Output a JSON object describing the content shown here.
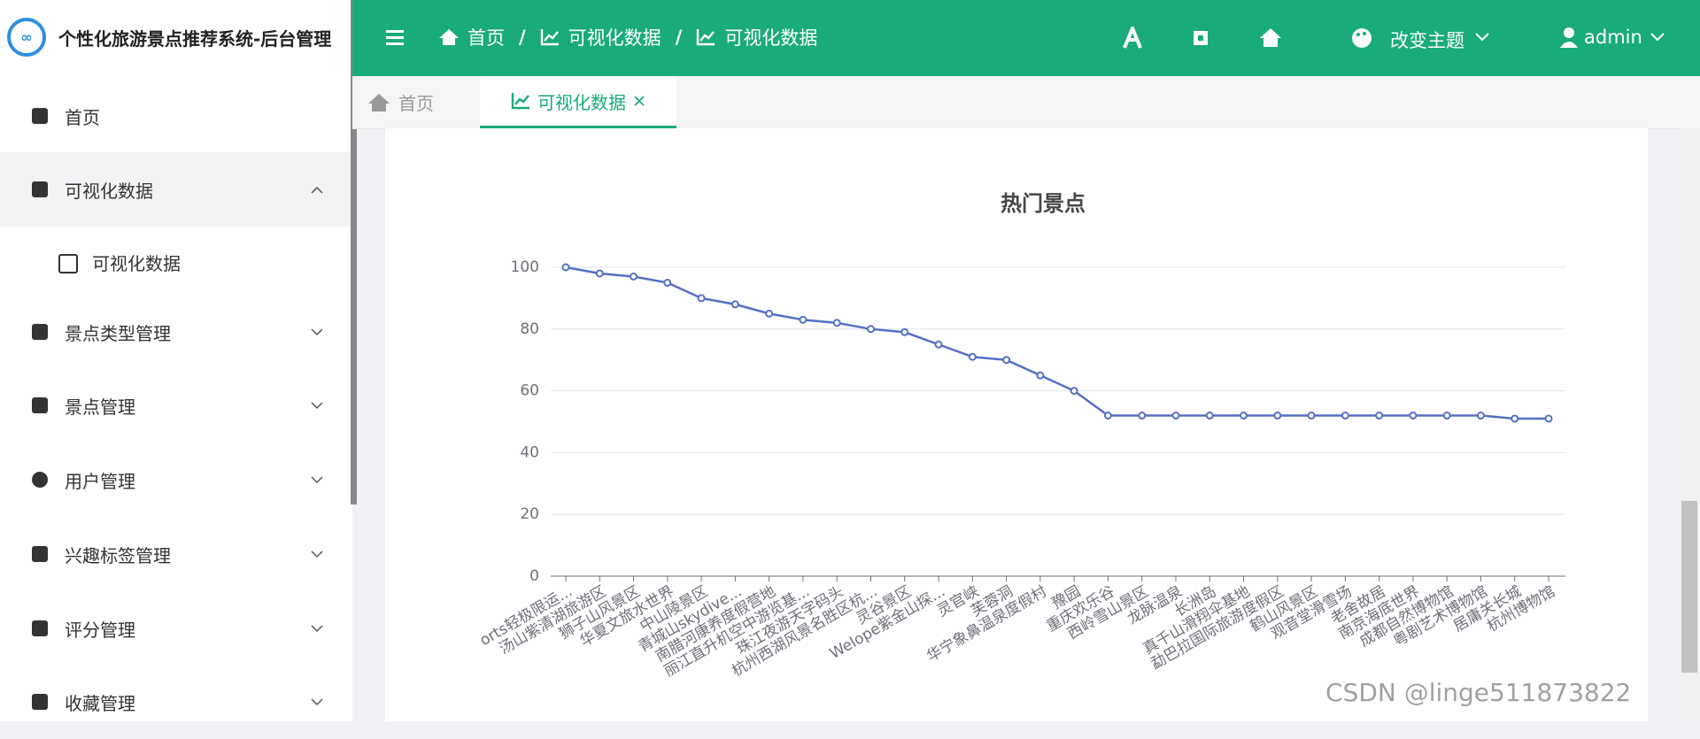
{
  "sidebar": {
    "title": "个性化旅游景点推荐系统-后台管理",
    "menu": [
      "首页",
      "可视化数据",
      "可视化数据",
      "景点类型管理",
      "景点管理",
      "用户管理",
      "兴趣标签管理",
      "评分管理",
      "收藏管理"
    ]
  },
  "header": {
    "breadcrumbs": [
      "首页",
      "可视化数据",
      "可视化数据"
    ],
    "separator": "/",
    "theme": "改变主题",
    "user": "admin"
  },
  "tabs": [
    "首页",
    "可视化数据"
  ],
  "chart_data": {
    "type": "line",
    "title": "热门景点",
    "categories": [
      "orts轻极限运...",
      "汤山紫清湖旅游区",
      "狮子山风景区",
      "华夏文旅水世界",
      "中山陵景区",
      "青城山skydive...",
      "南腊河康养度假营地",
      "丽江直升机空中游览基...",
      "珠江夜游天字码头",
      "杭州西湖风景名胜区杭...",
      "灵谷景区",
      "Welope紫金山探...",
      "灵官峡",
      "芙蓉洞",
      "华宁象鼻温泉度假村",
      "豫园",
      "重庆欢乐谷",
      "西岭雪山景区",
      "龙脉温泉",
      "长洲岛",
      "真千山滑翔伞基地",
      "勐巴拉国际旅游度假区",
      "鹤山风景区",
      "观音堂滑雪场",
      "老舍故居",
      "南京海底世界",
      "成都自然博物馆",
      "粤剧艺术博物馆",
      "居庸关长城",
      "杭州博物馆"
    ],
    "values": [
      100,
      98,
      97,
      95,
      90,
      88,
      85,
      83,
      82,
      80,
      79,
      75,
      71,
      70,
      65,
      60,
      52,
      52,
      52,
      52,
      52,
      52,
      52,
      52,
      52,
      52,
      52,
      52,
      51,
      51
    ],
    "color": "#5470c6",
    "ylim": [
      0,
      100
    ],
    "yticks": [
      0,
      20,
      40,
      60,
      80,
      100
    ],
    "grid": true
  },
  "watermark": "CSDN @linge511873822"
}
